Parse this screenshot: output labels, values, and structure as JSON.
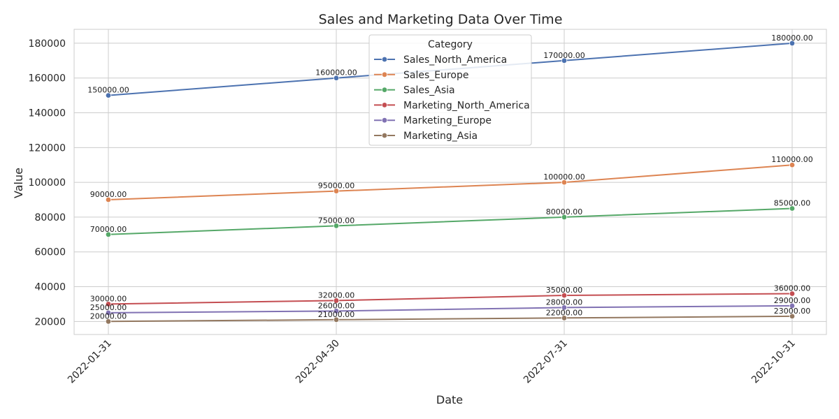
{
  "chart_data": {
    "type": "line",
    "title": "Sales and Marketing Data Over Time",
    "xlabel": "Date",
    "ylabel": "Value",
    "x": [
      "2022-01-31",
      "2022-04-30",
      "2022-07-31",
      "2022-10-31"
    ],
    "ylim": [
      12500,
      188000
    ],
    "yticks": [
      20000,
      40000,
      60000,
      80000,
      100000,
      120000,
      140000,
      160000,
      180000
    ],
    "grid": true,
    "legend": {
      "title": "Category",
      "placement": "top-center"
    },
    "series": [
      {
        "name": "Sales_North_America",
        "color": "#4c72b0",
        "values": [
          150000,
          160000,
          170000,
          180000
        ],
        "labels": [
          "150000.00",
          "160000.00",
          "170000.00",
          "180000.00"
        ]
      },
      {
        "name": "Sales_Europe",
        "color": "#dd8452",
        "values": [
          90000,
          95000,
          100000,
          110000
        ],
        "labels": [
          "90000.00",
          "95000.00",
          "100000.00",
          "110000.00"
        ]
      },
      {
        "name": "Sales_Asia",
        "color": "#55a868",
        "values": [
          70000,
          75000,
          80000,
          85000
        ],
        "labels": [
          "70000.00",
          "75000.00",
          "80000.00",
          "85000.00"
        ]
      },
      {
        "name": "Marketing_North_America",
        "color": "#c44e52",
        "values": [
          30000,
          32000,
          35000,
          36000
        ],
        "labels": [
          "30000.00",
          "32000.00",
          "35000.00",
          "36000.00"
        ]
      },
      {
        "name": "Marketing_Europe",
        "color": "#8172b3",
        "values": [
          25000,
          26000,
          28000,
          29000
        ],
        "labels": [
          "25000.00",
          "26000.00",
          "28000.00",
          "29000.00"
        ]
      },
      {
        "name": "Marketing_Asia",
        "color": "#937860",
        "values": [
          20000,
          21000,
          22000,
          23000
        ],
        "labels": [
          "20000.00",
          "21000.00",
          "22000.00",
          "23000.00"
        ]
      }
    ]
  }
}
